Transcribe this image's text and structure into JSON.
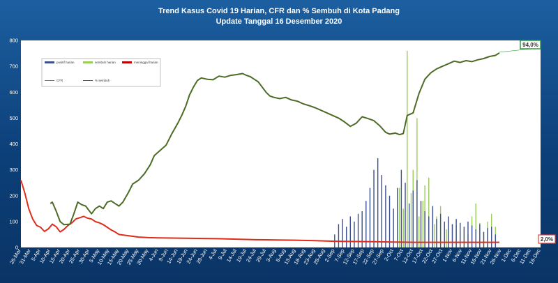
{
  "title": {
    "line1": "Trend Kasus Covid 19 Harian, CFR dan % Sembuh di Kota Padang",
    "line2": "Update Tanggal 16 Desember  2020"
  },
  "chart_data": {
    "type": "bar",
    "ylim": [
      0,
      800
    ],
    "y_ticks": [
      0,
      100,
      200,
      300,
      400,
      500,
      600,
      700,
      800
    ],
    "x_tick_labels": [
      "26-Mar",
      "31-Mar",
      "5-Apr",
      "10-Apr",
      "15-Apr",
      "20-Apr",
      "25-Apr",
      "30-Apr",
      "5-May",
      "10-May",
      "15-May",
      "20-May",
      "25-May",
      "30-May",
      "4-Jun",
      "9-Jun",
      "14-Jun",
      "19-Jun",
      "24-Jun",
      "29-Jun",
      "4-Jul",
      "9-Jul",
      "14-Jul",
      "19-Jul",
      "24-Jul",
      "29-Jul",
      "3-Aug",
      "8-Aug",
      "13-Aug",
      "18-Aug",
      "23-Aug",
      "28-Aug",
      "2-Sep",
      "7-Sep",
      "12-Sep",
      "17-Sep",
      "22-Sep",
      "27-Sep",
      "2-Oct",
      "7-Oct",
      "12-Oct",
      "17-Oct",
      "22-Oct",
      "27-Oct",
      "1-Nov",
      "6-Nov",
      "11-Nov",
      "16-Nov",
      "21-Nov",
      "26-Nov",
      "1-Dec",
      "6-Dec",
      "11-Dec",
      "16-Dec"
    ],
    "legend": {
      "placement": "top-left",
      "entries": [
        {
          "label": "positif harian",
          "kind": "bar",
          "color": "#3c4f8e"
        },
        {
          "label": "sembuh harian",
          "kind": "bar",
          "color": "#9ccc5a"
        },
        {
          "label": "meninggal harian",
          "kind": "bar",
          "color": "#c00000"
        },
        {
          "label": "CFR",
          "kind": "line",
          "color": "#e84c3c"
        },
        {
          "label": "% sembuh",
          "kind": "line",
          "color": "#4a6a2a"
        }
      ]
    },
    "series": [
      {
        "name": "% sembuh",
        "type": "line",
        "color": "#4d6b27",
        "points": [
          [
            15,
            170
          ],
          [
            16,
            175
          ],
          [
            18,
            140
          ],
          [
            20,
            100
          ],
          [
            22,
            88
          ],
          [
            25,
            90
          ],
          [
            27,
            130
          ],
          [
            29,
            175
          ],
          [
            31,
            165
          ],
          [
            33,
            160
          ],
          [
            36,
            130
          ],
          [
            38,
            150
          ],
          [
            40,
            160
          ],
          [
            42,
            150
          ],
          [
            44,
            175
          ],
          [
            46,
            180
          ],
          [
            48,
            170
          ],
          [
            50,
            160
          ],
          [
            52,
            175
          ],
          [
            55,
            215
          ],
          [
            57,
            245
          ],
          [
            60,
            260
          ],
          [
            63,
            285
          ],
          [
            66,
            320
          ],
          [
            68,
            355
          ],
          [
            71,
            375
          ],
          [
            74,
            395
          ],
          [
            77,
            440
          ],
          [
            80,
            480
          ],
          [
            82,
            510
          ],
          [
            84,
            545
          ],
          [
            86,
            590
          ],
          [
            88,
            620
          ],
          [
            90,
            645
          ],
          [
            92,
            655
          ],
          [
            95,
            650
          ],
          [
            98,
            648
          ],
          [
            101,
            662
          ],
          [
            104,
            658
          ],
          [
            107,
            665
          ],
          [
            110,
            668
          ],
          [
            113,
            672
          ],
          [
            115,
            665
          ],
          [
            117,
            660
          ],
          [
            119,
            650
          ],
          [
            121,
            640
          ],
          [
            123,
            620
          ],
          [
            125,
            600
          ],
          [
            127,
            585
          ],
          [
            129,
            580
          ],
          [
            132,
            575
          ],
          [
            135,
            580
          ],
          [
            138,
            570
          ],
          [
            141,
            565
          ],
          [
            144,
            555
          ],
          [
            147,
            548
          ],
          [
            150,
            540
          ],
          [
            153,
            530
          ],
          [
            156,
            520
          ],
          [
            159,
            510
          ],
          [
            162,
            500
          ],
          [
            165,
            485
          ],
          [
            168,
            468
          ],
          [
            171,
            480
          ],
          [
            174,
            505
          ],
          [
            177,
            498
          ],
          [
            180,
            490
          ],
          [
            183,
            470
          ],
          [
            186,
            445
          ],
          [
            188,
            438
          ],
          [
            191,
            442
          ],
          [
            193,
            436
          ],
          [
            195,
            440
          ],
          [
            197,
            510
          ],
          [
            200,
            520
          ],
          [
            203,
            595
          ],
          [
            206,
            650
          ],
          [
            209,
            675
          ],
          [
            212,
            690
          ],
          [
            215,
            700
          ],
          [
            218,
            710
          ],
          [
            221,
            720
          ],
          [
            224,
            715
          ],
          [
            227,
            722
          ],
          [
            230,
            718
          ],
          [
            233,
            725
          ],
          [
            236,
            730
          ],
          [
            239,
            738
          ],
          [
            242,
            742
          ],
          [
            244,
            752
          ]
        ]
      },
      {
        "name": "CFR",
        "type": "line",
        "color": "#e02a1a",
        "points": [
          [
            0,
            260
          ],
          [
            2,
            210
          ],
          [
            4,
            150
          ],
          [
            6,
            110
          ],
          [
            8,
            85
          ],
          [
            10,
            78
          ],
          [
            12,
            62
          ],
          [
            14,
            72
          ],
          [
            16,
            90
          ],
          [
            18,
            80
          ],
          [
            20,
            60
          ],
          [
            22,
            70
          ],
          [
            24,
            85
          ],
          [
            26,
            95
          ],
          [
            28,
            110
          ],
          [
            30,
            115
          ],
          [
            32,
            120
          ],
          [
            34,
            113
          ],
          [
            36,
            110
          ],
          [
            38,
            100
          ],
          [
            40,
            95
          ],
          [
            42,
            88
          ],
          [
            44,
            78
          ],
          [
            46,
            68
          ],
          [
            48,
            60
          ],
          [
            50,
            50
          ],
          [
            55,
            45
          ],
          [
            60,
            40
          ],
          [
            65,
            38
          ],
          [
            70,
            37
          ],
          [
            80,
            36
          ],
          [
            90,
            35
          ],
          [
            100,
            34
          ],
          [
            110,
            32
          ],
          [
            120,
            30
          ],
          [
            130,
            29
          ],
          [
            140,
            28
          ],
          [
            150,
            26
          ],
          [
            160,
            24
          ],
          [
            170,
            23
          ],
          [
            180,
            22
          ],
          [
            190,
            21
          ],
          [
            200,
            20
          ],
          [
            210,
            20
          ],
          [
            220,
            20
          ],
          [
            230,
            20
          ],
          [
            240,
            20
          ],
          [
            244,
            20
          ]
        ]
      },
      {
        "name": "sembuh harian",
        "type": "bar",
        "color": "#9ccc5a",
        "days": [
          193,
          195,
          197,
          199,
          200,
          202,
          203,
          205,
          206,
          208,
          210,
          211,
          212,
          214,
          216,
          217,
          218,
          220,
          222,
          224,
          226,
          228,
          230,
          232,
          234,
          236,
          238,
          240,
          242
        ],
        "values": [
          230,
          150,
          760,
          210,
          300,
          500,
          120,
          180,
          240,
          270,
          150,
          90,
          120,
          160,
          80,
          70,
          110,
          90,
          85,
          60,
          70,
          50,
          120,
          170,
          95,
          60,
          100,
          130,
          80
        ]
      },
      {
        "name": "positif harian",
        "type": "bar",
        "color": "#3c4f8e",
        "days": [
          160,
          162,
          164,
          166,
          168,
          170,
          172,
          174,
          176,
          178,
          180,
          182,
          184,
          186,
          188,
          190,
          192,
          194,
          196,
          198,
          200,
          202,
          204,
          206,
          208,
          210,
          212,
          214,
          216,
          218,
          220,
          222,
          224,
          226,
          228,
          230,
          232,
          234,
          236,
          238,
          240,
          242
        ],
        "values": [
          50,
          90,
          110,
          80,
          120,
          100,
          130,
          140,
          180,
          230,
          300,
          345,
          280,
          240,
          200,
          150,
          230,
          300,
          250,
          170,
          220,
          260,
          180,
          140,
          120,
          160,
          110,
          130,
          100,
          120,
          90,
          110,
          95,
          80,
          100,
          85,
          70,
          90,
          60,
          75,
          80,
          50
        ]
      }
    ],
    "callouts": [
      {
        "text": "94,0%",
        "series": "% sembuh"
      },
      {
        "text": "2,0%",
        "series": "CFR"
      }
    ]
  }
}
